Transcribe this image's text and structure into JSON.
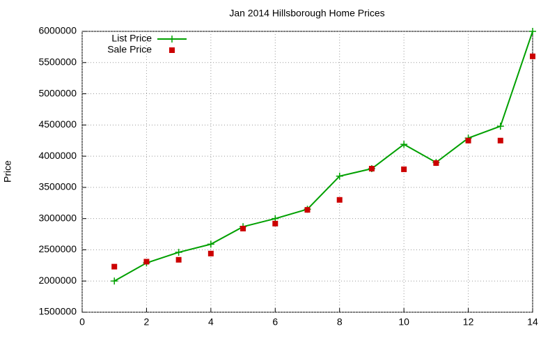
{
  "chart_data": {
    "type": "line",
    "title": "Jan 2014 Hillsborough Home Prices",
    "y_label": "Price",
    "x": [
      1,
      2,
      3,
      4,
      5,
      6,
      7,
      8,
      9,
      10,
      11,
      12,
      13,
      14
    ],
    "series": [
      {
        "name": "List Price",
        "color": "#00a000",
        "mode": "lines+markers",
        "values": [
          2000000,
          2290000,
          2460000,
          2590000,
          2870000,
          3000000,
          3150000,
          3680000,
          3800000,
          4190000,
          3900000,
          4290000,
          4480000,
          6000000
        ]
      },
      {
        "name": "Sale Price",
        "color": "#cc0000",
        "mode": "markers",
        "values": [
          2230000,
          2310000,
          2340000,
          2440000,
          2840000,
          2920000,
          3140000,
          3300000,
          3800000,
          3790000,
          3890000,
          4250000,
          4250000,
          5600000
        ]
      }
    ],
    "xlim": [
      0,
      14
    ],
    "xticks": [
      0,
      2,
      4,
      6,
      8,
      10,
      12,
      14
    ],
    "ylim": [
      1500000,
      6000000
    ],
    "yticks": [
      1500000,
      2000000,
      2500000,
      3000000,
      3500000,
      4000000,
      4500000,
      5000000,
      5500000,
      6000000
    ],
    "grid": true,
    "legend": "top-left"
  }
}
